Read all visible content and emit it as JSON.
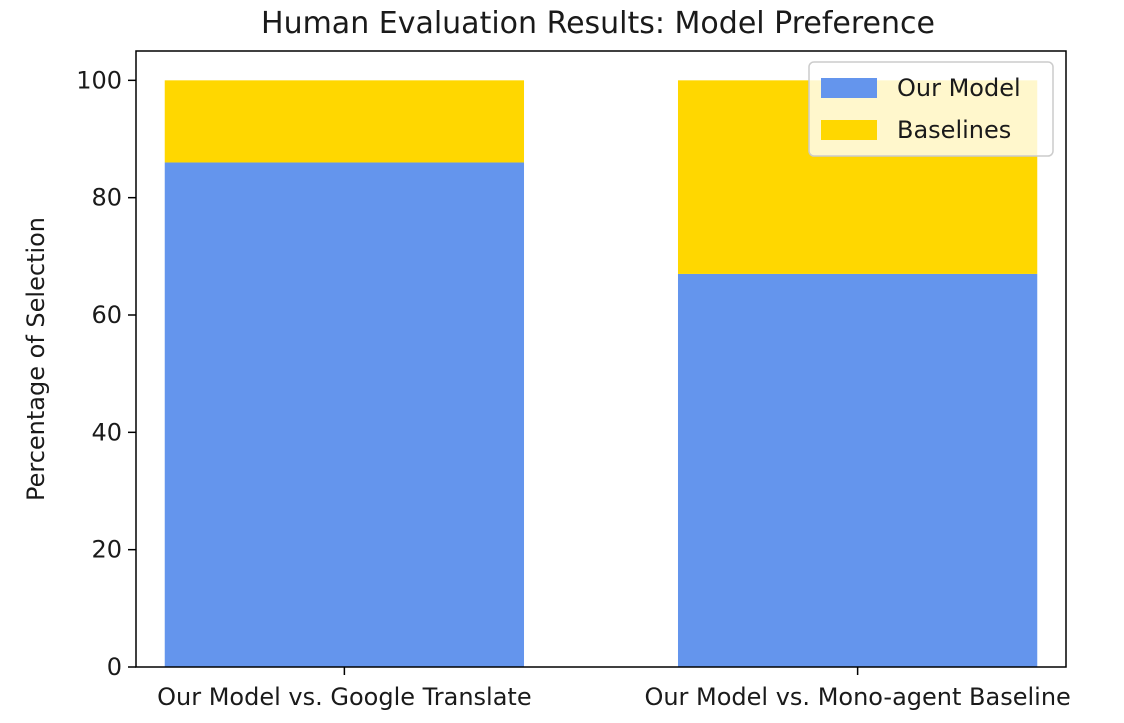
{
  "chart_data": {
    "type": "bar",
    "stacked": true,
    "title": "Human Evaluation Results: Model Preference",
    "xlabel": "",
    "ylabel": "Percentage of Selection",
    "categories": [
      "Our Model vs. Google Translate",
      "Our Model vs. Mono-agent Baseline"
    ],
    "series": [
      {
        "name": "Our Model",
        "color": "#6495ED",
        "values": [
          86,
          67
        ]
      },
      {
        "name": "Baselines",
        "color": "#FFD700",
        "values": [
          14,
          33
        ]
      }
    ],
    "ylim": [
      0,
      105
    ],
    "yticks": [
      "0",
      "20",
      "40",
      "60",
      "80",
      "100"
    ],
    "grid": false,
    "legend": {
      "position": "top-right"
    }
  }
}
